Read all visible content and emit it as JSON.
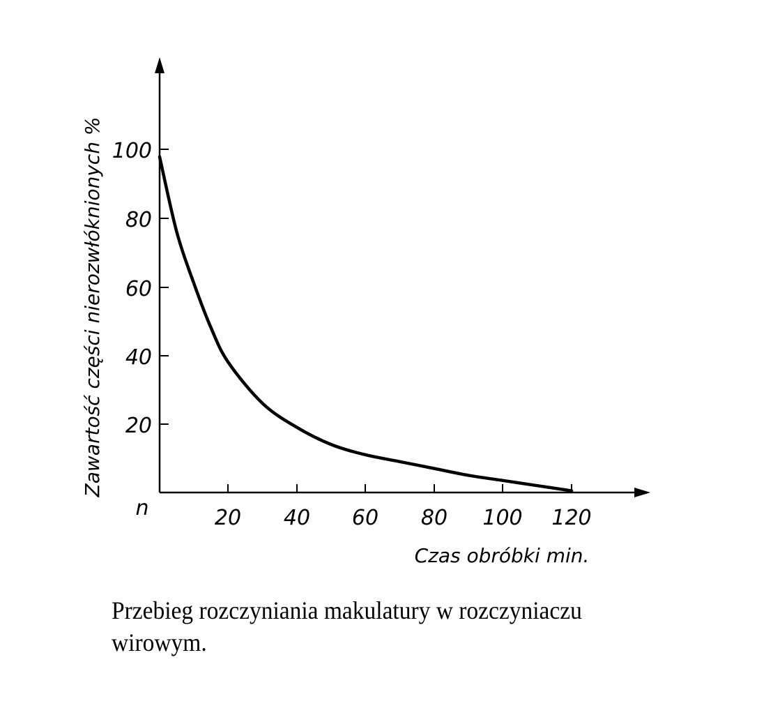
{
  "chart_data": {
    "type": "line",
    "title": "",
    "xlabel": "Czas obróbki min.",
    "ylabel": "Zawartość części nierozwłóknionych %",
    "origin_label": "n",
    "x_ticks": [
      20,
      40,
      60,
      80,
      100,
      120
    ],
    "y_ticks": [
      20,
      40,
      60,
      80,
      100
    ],
    "xlim": [
      0,
      140
    ],
    "ylim": [
      0,
      125
    ],
    "grid": false,
    "legend": null,
    "series": [
      {
        "name": "Zawartość części nierozwłóknionych",
        "x": [
          0,
          5,
          10,
          15,
          20,
          30,
          40,
          50,
          60,
          70,
          80,
          90,
          100,
          110,
          120
        ],
        "y": [
          98,
          76,
          61,
          48,
          38,
          26,
          19,
          14,
          11,
          9,
          7,
          5,
          3.5,
          2,
          0.5
        ]
      }
    ]
  },
  "labels": {
    "ylabel": "Zawartość części nierozwłóknionych %",
    "xlabel": "Czas obróbki min.",
    "origin": "n",
    "x_tick_20": "20",
    "x_tick_40": "40",
    "x_tick_60": "60",
    "x_tick_80": "80",
    "x_tick_100": "100",
    "x_tick_120": "120",
    "y_tick_20": "20",
    "y_tick_40": "40",
    "y_tick_60": "60",
    "y_tick_80": "80",
    "y_tick_100": "100"
  },
  "caption": "Przebieg rozczyniania makulatury w rozczyniaczu wirowym."
}
